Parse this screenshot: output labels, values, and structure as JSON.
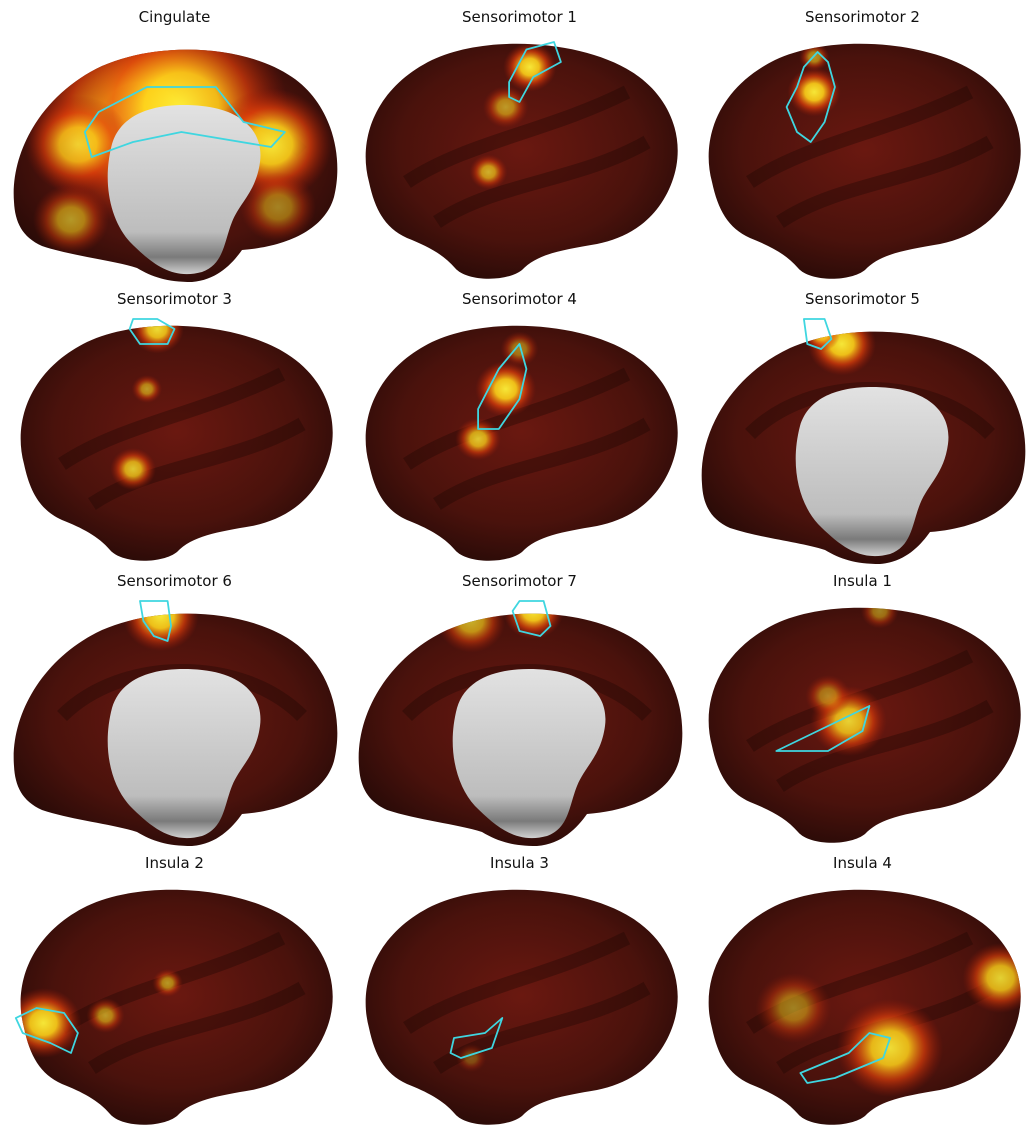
{
  "panels": [
    {
      "title": "Cingulate",
      "view": "medial",
      "hot": [
        [
          0.4,
          0.35,
          0.3,
          0.95
        ],
        [
          0.52,
          0.3,
          0.28,
          0.9
        ],
        [
          0.78,
          0.45,
          0.16,
          0.95
        ],
        [
          0.22,
          0.45,
          0.14,
          0.8
        ],
        [
          0.2,
          0.75,
          0.1,
          0.6
        ],
        [
          0.8,
          0.7,
          0.1,
          0.5
        ]
      ],
      "roi": [
        [
          0.28,
          0.32
        ],
        [
          0.42,
          0.22
        ],
        [
          0.62,
          0.22
        ],
        [
          0.7,
          0.36
        ],
        [
          0.82,
          0.4
        ],
        [
          0.78,
          0.46
        ],
        [
          0.52,
          0.4
        ],
        [
          0.38,
          0.44
        ],
        [
          0.26,
          0.5
        ],
        [
          0.24,
          0.4
        ]
      ]
    },
    {
      "title": "Sensorimotor 1",
      "view": "lateral",
      "hot": [
        [
          0.53,
          0.14,
          0.07,
          0.95
        ],
        [
          0.46,
          0.3,
          0.06,
          0.6
        ],
        [
          0.41,
          0.56,
          0.05,
          0.7
        ]
      ],
      "roi": [
        [
          0.47,
          0.2
        ],
        [
          0.52,
          0.07
        ],
        [
          0.6,
          0.04
        ],
        [
          0.62,
          0.12
        ],
        [
          0.54,
          0.18
        ],
        [
          0.5,
          0.28
        ],
        [
          0.47,
          0.26
        ]
      ]
    },
    {
      "title": "Sensorimotor 2",
      "view": "lateral",
      "hot": [
        [
          0.36,
          0.24,
          0.07,
          0.95
        ],
        [
          0.36,
          0.1,
          0.04,
          0.6
        ]
      ],
      "roi": [
        [
          0.33,
          0.14
        ],
        [
          0.37,
          0.08
        ],
        [
          0.4,
          0.12
        ],
        [
          0.42,
          0.22
        ],
        [
          0.39,
          0.36
        ],
        [
          0.35,
          0.44
        ],
        [
          0.31,
          0.4
        ],
        [
          0.28,
          0.3
        ],
        [
          0.31,
          0.22
        ]
      ]
    },
    {
      "title": "Sensorimotor 3",
      "view": "lateral",
      "hot": [
        [
          0.45,
          0.06,
          0.07,
          0.9
        ],
        [
          0.42,
          0.3,
          0.04,
          0.6
        ],
        [
          0.38,
          0.62,
          0.06,
          0.8
        ]
      ],
      "roi": [
        [
          0.38,
          0.02
        ],
        [
          0.45,
          0.02
        ],
        [
          0.5,
          0.06
        ],
        [
          0.48,
          0.12
        ],
        [
          0.4,
          0.12
        ],
        [
          0.37,
          0.06
        ]
      ]
    },
    {
      "title": "Sensorimotor 4",
      "view": "lateral",
      "hot": [
        [
          0.46,
          0.3,
          0.08,
          0.95
        ],
        [
          0.38,
          0.5,
          0.06,
          0.8
        ],
        [
          0.5,
          0.14,
          0.05,
          0.5
        ]
      ],
      "roi": [
        [
          0.44,
          0.22
        ],
        [
          0.5,
          0.12
        ],
        [
          0.52,
          0.22
        ],
        [
          0.5,
          0.34
        ],
        [
          0.44,
          0.46
        ],
        [
          0.38,
          0.46
        ],
        [
          0.38,
          0.38
        ]
      ]
    },
    {
      "title": "Sensorimotor 5",
      "view": "medial",
      "hot": [
        [
          0.44,
          0.12,
          0.09,
          0.95
        ],
        [
          0.38,
          0.08,
          0.05,
          0.8
        ]
      ],
      "roi": [
        [
          0.33,
          0.02
        ],
        [
          0.39,
          0.02
        ],
        [
          0.41,
          0.1
        ],
        [
          0.38,
          0.14
        ],
        [
          0.34,
          0.12
        ]
      ]
    },
    {
      "title": "Sensorimotor 6",
      "view": "medial",
      "hot": [
        [
          0.46,
          0.08,
          0.1,
          0.95
        ]
      ],
      "roi": [
        [
          0.4,
          0.02
        ],
        [
          0.48,
          0.02
        ],
        [
          0.49,
          0.12
        ],
        [
          0.48,
          0.18
        ],
        [
          0.44,
          0.16
        ],
        [
          0.41,
          0.1
        ]
      ]
    },
    {
      "title": "Sensorimotor 7",
      "view": "medial",
      "hot": [
        [
          0.54,
          0.06,
          0.08,
          0.95
        ],
        [
          0.36,
          0.1,
          0.09,
          0.7
        ]
      ],
      "roi": [
        [
          0.5,
          0.02
        ],
        [
          0.57,
          0.02
        ],
        [
          0.59,
          0.12
        ],
        [
          0.56,
          0.16
        ],
        [
          0.5,
          0.14
        ],
        [
          0.48,
          0.06
        ]
      ]
    },
    {
      "title": "Insula 1",
      "view": "lateral",
      "hot": [
        [
          0.46,
          0.5,
          0.1,
          0.85
        ],
        [
          0.55,
          0.06,
          0.05,
          0.5
        ],
        [
          0.4,
          0.4,
          0.06,
          0.5
        ]
      ],
      "roi": [
        [
          0.25,
          0.62
        ],
        [
          0.4,
          0.52
        ],
        [
          0.52,
          0.44
        ],
        [
          0.5,
          0.54
        ],
        [
          0.4,
          0.62
        ],
        [
          0.34,
          0.62
        ]
      ]
    },
    {
      "title": "Insula 2",
      "view": "lateral",
      "hot": [
        [
          0.12,
          0.58,
          0.1,
          0.95
        ],
        [
          0.3,
          0.55,
          0.05,
          0.6
        ],
        [
          0.48,
          0.42,
          0.04,
          0.6
        ]
      ],
      "roi": [
        [
          0.04,
          0.56
        ],
        [
          0.1,
          0.52
        ],
        [
          0.18,
          0.54
        ],
        [
          0.22,
          0.62
        ],
        [
          0.2,
          0.7
        ],
        [
          0.14,
          0.66
        ],
        [
          0.06,
          0.62
        ]
      ]
    },
    {
      "title": "Insula 3",
      "view": "lateral",
      "hot": [
        [
          0.36,
          0.72,
          0.04,
          0.3
        ]
      ],
      "roi": [
        [
          0.31,
          0.64
        ],
        [
          0.4,
          0.62
        ],
        [
          0.45,
          0.56
        ],
        [
          0.42,
          0.68
        ],
        [
          0.33,
          0.72
        ],
        [
          0.3,
          0.7
        ]
      ]
    },
    {
      "title": "Insula 4",
      "view": "lateral",
      "hot": [
        [
          0.58,
          0.68,
          0.14,
          0.9
        ],
        [
          0.9,
          0.4,
          0.1,
          0.85
        ],
        [
          0.3,
          0.52,
          0.1,
          0.5
        ]
      ],
      "roi": [
        [
          0.32,
          0.78
        ],
        [
          0.46,
          0.7
        ],
        [
          0.52,
          0.62
        ],
        [
          0.58,
          0.64
        ],
        [
          0.56,
          0.72
        ],
        [
          0.42,
          0.8
        ],
        [
          0.34,
          0.82
        ]
      ]
    }
  ]
}
